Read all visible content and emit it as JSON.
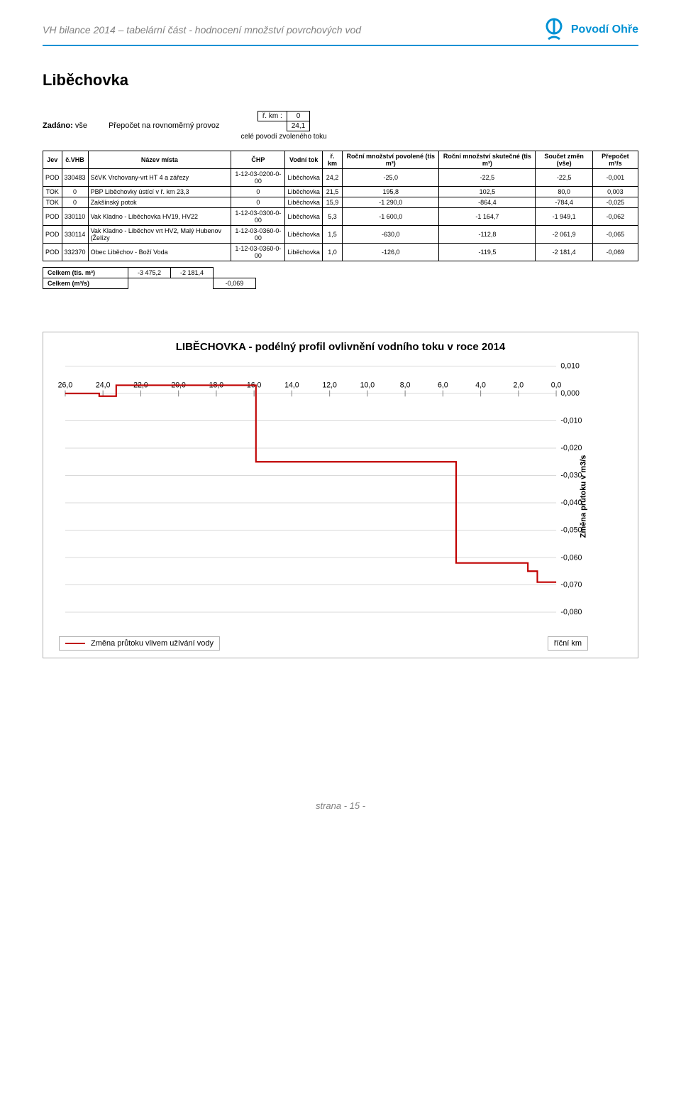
{
  "header": {
    "title": "VH bilance 2014 – tabelární část - hodnocení množství povrchových vod",
    "brand": "Povodí Ohře",
    "brand_color": "#0091d4"
  },
  "section_title": "Liběchovka",
  "params": {
    "zadano_label": "Zadáno:",
    "zadano_value": "vše",
    "prepocet_text": "Přepočet na rovnoměrný provoz",
    "mini_rows": [
      {
        "k": "ř. km :",
        "v": "0"
      },
      {
        "k": "",
        "v": "24,1"
      }
    ],
    "cele_povodi": "celé povodí zvoleného toku"
  },
  "table": {
    "headers": [
      "Jev",
      "č.VHB",
      "Název místa",
      "ČHP",
      "Vodní tok",
      "ř. km",
      "Roční množství povolené (tis m³)",
      "Roční množství skutečné (tis m³)",
      "Součet změn (vše)",
      "Přepočet m³/s"
    ],
    "rows": [
      [
        "POD",
        "330483",
        "SčVK Vrchovany-vrt HT 4 a zářezy",
        "1-12-03-0200-0-00",
        "Liběchovka",
        "24,2",
        "-25,0",
        "-22,5",
        "-22,5",
        "-0,001"
      ],
      [
        "TOK",
        "0",
        "PBP Liběchovky ústící v ř. km 23,3",
        "0",
        "Liběchovka",
        "21,5",
        "195,8",
        "102,5",
        "80,0",
        "0,003"
      ],
      [
        "TOK",
        "0",
        "Zakšínský potok",
        "0",
        "Liběchovka",
        "15,9",
        "-1 290,0",
        "-864,4",
        "-784,4",
        "-0,025"
      ],
      [
        "POD",
        "330110",
        "Vak Kladno - Liběchovka HV19, HV22",
        "1-12-03-0300-0-00",
        "Liběchovka",
        "5,3",
        "-1 600,0",
        "-1 164,7",
        "-1 949,1",
        "-0,062"
      ],
      [
        "POD",
        "330114",
        "Vak Kladno - Liběchov vrt HV2, Malý Hubenov (Želízy",
        "1-12-03-0360-0-00",
        "Liběchovka",
        "1,5",
        "-630,0",
        "-112,8",
        "-2 061,9",
        "-0,065"
      ],
      [
        "POD",
        "332370",
        "Obec Liběchov - Boží Voda",
        "1-12-03-0360-0-00",
        "Liběchovka",
        "1,0",
        "-126,0",
        "-119,5",
        "-2 181,4",
        "-0,069"
      ]
    ]
  },
  "summary": {
    "rows": [
      {
        "label": "Celkem (tis. m³)",
        "values": [
          "-3 475,2",
          "-2 181,4",
          ""
        ]
      },
      {
        "label": "Celkem (m³/s)",
        "values": [
          "",
          "",
          "-0,069"
        ]
      }
    ]
  },
  "chart": {
    "title": "LIBĚCHOVKA - podélný profil ovlivnění vodního toku v roce 2014",
    "x_ticks": [
      "26,0",
      "24,0",
      "22,0",
      "20,0",
      "18,0",
      "16,0",
      "14,0",
      "12,0",
      "10,0",
      "8,0",
      "6,0",
      "4,0",
      "2,0",
      "0,0"
    ],
    "x_min": 0,
    "x_max": 26,
    "x_reversed": true,
    "y_ticks": [
      "0,010",
      "0,000",
      "-0,010",
      "-0,020",
      "-0,030",
      "-0,040",
      "-0,050",
      "-0,060",
      "-0,070",
      "-0,080"
    ],
    "y_min": -0.08,
    "y_max": 0.01,
    "y_label": "Změna průtoku v m3/s",
    "y_label_fontsize": 11,
    "x_label": "říční km",
    "legend_label": "Změna průtoku vlivem užívání vody",
    "line_color": "#c00000",
    "line_width": 2,
    "grid_color": "#d9d9d9",
    "axis_color": "#888888",
    "background_color": "#ffffff",
    "tick_fontsize": 10,
    "title_fontsize": 15,
    "series": [
      {
        "x": 24.2,
        "y": -0.001
      },
      {
        "x": 23.3,
        "y": 0.003
      },
      {
        "x": 21.5,
        "y": 0.003
      },
      {
        "x": 15.9,
        "y": -0.025
      },
      {
        "x": 5.3,
        "y": -0.062
      },
      {
        "x": 1.5,
        "y": -0.065
      },
      {
        "x": 1.0,
        "y": -0.069
      },
      {
        "x": 0.0,
        "y": -0.069
      }
    ]
  },
  "footer": "strana  - 15 -"
}
